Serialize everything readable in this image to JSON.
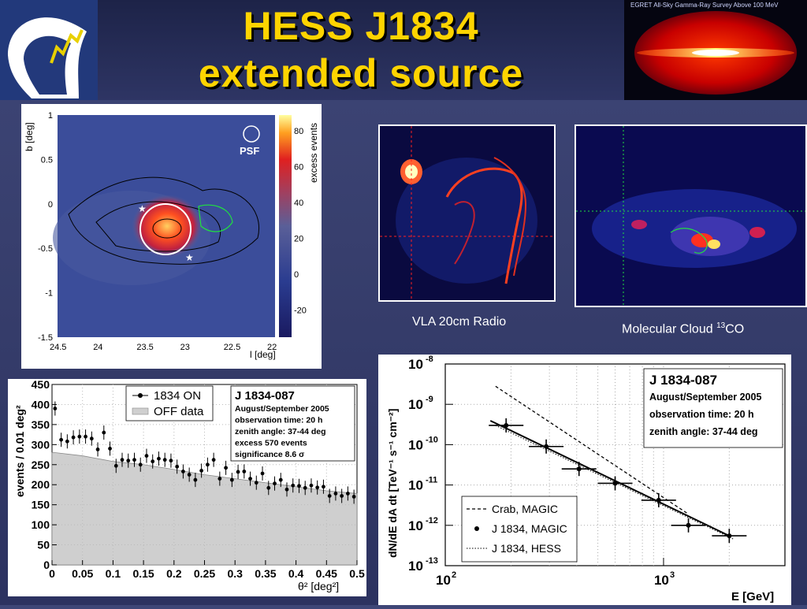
{
  "slide": {
    "title_line1": "HESS J1834",
    "title_line2": "extended source",
    "colors": {
      "background": "#3a4272",
      "title": "#ffd400",
      "header_bar": "#242a52"
    }
  },
  "egret": {
    "caption": "EGRET All-Sky Gamma-Ray Survey Above 100 MeV"
  },
  "skymap": {
    "psf_label": "PSF",
    "xlabel": "l [deg]",
    "ylabel": "b [deg]",
    "colorbar_label": "excess events",
    "x_ticks": [
      "24.5",
      "24",
      "23.5",
      "23",
      "22.5",
      "22"
    ],
    "y_ticks": [
      "1",
      "0.5",
      "0",
      "-0.5",
      "-1",
      "-1.5"
    ],
    "colorbar_ticks": [
      "80",
      "60",
      "40",
      "20",
      "0",
      "-20"
    ]
  },
  "vla": {
    "caption": "VLA 20cm Radio"
  },
  "co": {
    "caption_prefix": "Molecular Cloud ",
    "caption_sup": "13",
    "caption_suffix": "CO"
  },
  "theta_plot": {
    "legend_on": "1834 ON",
    "legend_off": "OFF data",
    "info_title": "J 1834-087",
    "info_lines": [
      "August/September 2005",
      "observation time: 20 h",
      "zenith angle: 37-44 deg",
      "excess 570 events",
      "significance 8.6 σ"
    ],
    "xlabel": "θ² [deg²]",
    "ylabel": "events / 0.01 deg²"
  },
  "spectrum_plot": {
    "info_title": "J 1834-087",
    "info_lines": [
      "August/September 2005",
      "observation time: 20 h",
      "zenith angle: 37-44 deg"
    ],
    "legend": [
      "Crab, MAGIC",
      "J 1834, MAGIC",
      "J 1834, HESS"
    ],
    "xlabel": "E [GeV]",
    "ylabel": "dN/dE dA dt [TeV⁻¹ s⁻¹ cm⁻²]"
  },
  "chart_data": [
    {
      "type": "scatter",
      "title": "",
      "xlabel": "θ² [deg²]",
      "ylabel": "events / 0.01 deg²",
      "xlim": [
        0,
        0.5
      ],
      "ylim": [
        0,
        450
      ],
      "x_ticks": [
        0,
        0.05,
        0.1,
        0.15,
        0.2,
        0.25,
        0.3,
        0.35,
        0.4,
        0.45,
        0.5
      ],
      "y_ticks": [
        0,
        50,
        100,
        150,
        200,
        250,
        300,
        350,
        400,
        450
      ],
      "series": [
        {
          "name": "1834 ON",
          "x": [
            0.005,
            0.015,
            0.025,
            0.035,
            0.045,
            0.055,
            0.065,
            0.075,
            0.085,
            0.095,
            0.105,
            0.115,
            0.125,
            0.135,
            0.145,
            0.155,
            0.165,
            0.175,
            0.185,
            0.195,
            0.205,
            0.215,
            0.225,
            0.235,
            0.245,
            0.255,
            0.265,
            0.275,
            0.285,
            0.295,
            0.305,
            0.315,
            0.325,
            0.335,
            0.345,
            0.355,
            0.365,
            0.375,
            0.385,
            0.395,
            0.405,
            0.415,
            0.425,
            0.435,
            0.445,
            0.455,
            0.465,
            0.475,
            0.485,
            0.495
          ],
          "y": [
            390,
            312,
            308,
            318,
            320,
            320,
            315,
            288,
            330,
            290,
            247,
            262,
            260,
            262,
            250,
            272,
            258,
            265,
            262,
            260,
            245,
            233,
            225,
            212,
            235,
            250,
            262,
            215,
            242,
            212,
            232,
            233,
            215,
            205,
            228,
            192,
            203,
            212,
            188,
            198,
            197,
            192,
            198,
            193,
            195,
            172,
            178,
            172,
            178,
            170
          ]
        },
        {
          "name": "OFF data",
          "x": [
            0.005,
            0.05,
            0.1,
            0.15,
            0.2,
            0.25,
            0.3,
            0.35,
            0.4,
            0.45,
            0.5
          ],
          "y": [
            280,
            272,
            258,
            250,
            238,
            225,
            215,
            205,
            195,
            185,
            178
          ]
        }
      ]
    },
    {
      "type": "line",
      "title": "",
      "xlabel": "E [GeV]",
      "ylabel": "dN/dE dA dt [TeV⁻¹ s⁻¹ cm⁻²]",
      "x_scale": "log",
      "y_scale": "log",
      "xlim": [
        100,
        1500
      ],
      "ylim": [
        1e-13,
        1e-08
      ],
      "series": [
        {
          "name": "Crab, MAGIC",
          "style": "dashed",
          "x": [
            170,
            1300
          ],
          "y": [
            2.8e-09,
            1.9e-12
          ]
        },
        {
          "name": "J 1834, MAGIC",
          "style": "points",
          "x": [
            190,
            290,
            410,
            600,
            950,
            1300,
            2000
          ],
          "y": [
            3e-10,
            9e-11,
            2.5e-11,
            1.1e-11,
            4.2e-12,
            1e-12,
            5.5e-13
          ]
        },
        {
          "name": "J 1834, HESS",
          "style": "dotted",
          "x": [
            170,
            2100
          ],
          "y": [
            3e-10,
            4.5e-13
          ]
        }
      ]
    }
  ]
}
